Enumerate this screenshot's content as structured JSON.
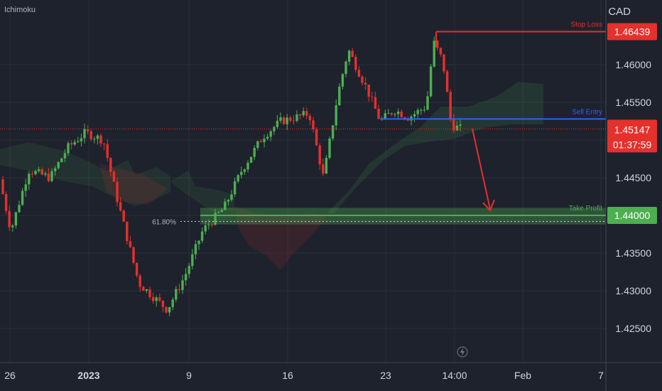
{
  "indicator": "Ichimoku",
  "currency": "CAD",
  "colors": {
    "background": "#1e222d",
    "bull": "#4caf50",
    "bear": "#e5302c",
    "stop_loss": "#e5302c",
    "entry": "#2962ff",
    "take_profit": "#4caf50",
    "axis_text": "#d1d4dc"
  },
  "chart_data": {
    "type": "candlestick",
    "ylim": [
      1.4205,
      1.4695
    ],
    "y_ticks": [
      "1.46000",
      "1.45500",
      "1.45000",
      "1.44500",
      "1.44000",
      "1.43500",
      "1.43000",
      "1.42500"
    ],
    "x_ticks": [
      "26",
      "2023",
      "9",
      "16",
      "23",
      "14:00",
      "Feb",
      "7"
    ],
    "levels": [
      {
        "name": "Stop Loss",
        "value": 1.46439,
        "label": "1.46439"
      },
      {
        "name": "Sell Entry",
        "value": 1.4528,
        "label": ""
      },
      {
        "name": "Take Profit",
        "value": 1.44,
        "label": "1.44000"
      }
    ],
    "current_price": {
      "value": 1.45147,
      "label": "1.45147",
      "countdown": "01:37:59"
    },
    "fib_label": "61.80%",
    "fib_value": 1.4392
  }
}
